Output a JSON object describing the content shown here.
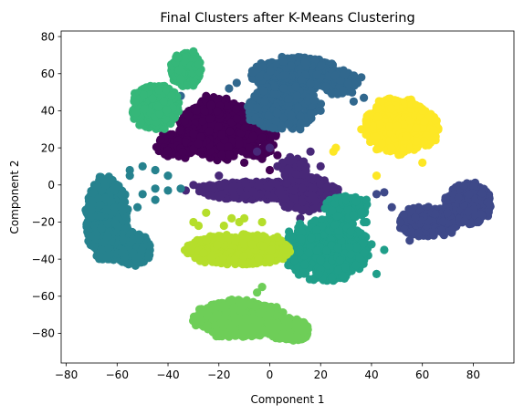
{
  "chart_data": {
    "type": "scatter",
    "title": "Final Clusters after K-Means Clustering",
    "xlabel": "Component 1",
    "ylabel": "Component 2",
    "xlim": [
      -82,
      96
    ],
    "ylim": [
      -96,
      83
    ],
    "xticks": [
      -80,
      -60,
      -40,
      -20,
      0,
      20,
      40,
      60,
      80
    ],
    "yticks": [
      -80,
      -60,
      -40,
      -20,
      0,
      20,
      40,
      60,
      80
    ],
    "grid": false,
    "legend": "none",
    "colormap": "viridis",
    "series": [
      {
        "color": "#440154",
        "clusters": [
          {
            "cx": -20,
            "cy": 30,
            "rx": 15,
            "ry": 16,
            "n": 650
          },
          {
            "cx": -35,
            "cy": 22,
            "rx": 10,
            "ry": 7,
            "n": 120
          },
          {
            "cx": -5,
            "cy": 25,
            "rx": 8,
            "ry": 10,
            "n": 120
          }
        ],
        "outliers": [
          [
            -8,
            20
          ],
          [
            -3,
            14
          ],
          [
            3,
            16
          ],
          [
            -10,
            12
          ],
          [
            0,
            8
          ],
          [
            -25,
            48
          ],
          [
            -12,
            22
          ]
        ]
      },
      {
        "color": "#482878",
        "clusters": [
          {
            "cx": -5,
            "cy": -3,
            "rx": 23,
            "ry": 5,
            "n": 380
          },
          {
            "cx": 15,
            "cy": -5,
            "rx": 12,
            "ry": 9,
            "n": 260
          },
          {
            "cx": 10,
            "cy": 8,
            "rx": 5,
            "ry": 6,
            "n": 60
          }
        ],
        "outliers": [
          [
            5,
            12
          ],
          [
            8,
            15
          ],
          [
            -5,
            18
          ],
          [
            0,
            20
          ],
          [
            -30,
            0
          ],
          [
            -33,
            -3
          ],
          [
            12,
            -18
          ],
          [
            3,
            10
          ],
          [
            20,
            10
          ],
          [
            16,
            18
          ],
          [
            -20,
            5
          ]
        ]
      },
      {
        "color": "#3e4989",
        "clusters": [
          {
            "cx": 62,
            "cy": -20,
            "rx": 12,
            "ry": 8,
            "n": 260
          },
          {
            "cx": 78,
            "cy": -10,
            "rx": 9,
            "ry": 11,
            "n": 260
          }
        ],
        "outliers": [
          [
            42,
            -5
          ],
          [
            45,
            -4
          ],
          [
            48,
            -12
          ],
          [
            55,
            -30
          ],
          [
            82,
            -20
          ]
        ]
      },
      {
        "color": "#31688e",
        "clusters": [
          {
            "cx": 10,
            "cy": 60,
            "rx": 17,
            "ry": 9,
            "n": 500
          },
          {
            "cx": 5,
            "cy": 42,
            "rx": 14,
            "ry": 12,
            "n": 350
          },
          {
            "cx": 28,
            "cy": 55,
            "rx": 6,
            "ry": 7,
            "n": 90
          }
        ],
        "outliers": [
          [
            33,
            45
          ],
          [
            37,
            47
          ],
          [
            -13,
            55
          ],
          [
            -16,
            52
          ],
          [
            20,
            40
          ],
          [
            12,
            30
          ],
          [
            -2,
            45
          ],
          [
            36,
            58
          ],
          [
            -35,
            48
          ]
        ]
      },
      {
        "color": "#26828e",
        "clusters": [
          {
            "cx": -64,
            "cy": -18,
            "rx": 8,
            "ry": 22,
            "n": 700
          },
          {
            "cx": -54,
            "cy": -35,
            "rx": 7,
            "ry": 9,
            "n": 150
          }
        ],
        "outliers": [
          [
            -55,
            8
          ],
          [
            -50,
            10
          ],
          [
            -45,
            8
          ],
          [
            -40,
            5
          ],
          [
            -45,
            -2
          ],
          [
            -40,
            -3
          ],
          [
            -35,
            -2
          ],
          [
            -50,
            -5
          ],
          [
            -45,
            -8
          ],
          [
            -52,
            -12
          ],
          [
            -55,
            5
          ]
        ]
      },
      {
        "color": "#1f9e89",
        "clusters": [
          {
            "cx": 22,
            "cy": -35,
            "rx": 17,
            "ry": 16,
            "n": 650
          },
          {
            "cx": 30,
            "cy": -12,
            "rx": 8,
            "ry": 6,
            "n": 150
          }
        ],
        "outliers": [
          [
            38,
            -20
          ],
          [
            40,
            -32
          ],
          [
            45,
            -35
          ],
          [
            42,
            -48
          ],
          [
            38,
            -8
          ],
          [
            37,
            -20
          ]
        ]
      },
      {
        "color": "#35b779",
        "clusters": [
          {
            "cx": -45,
            "cy": 42,
            "rx": 9,
            "ry": 12,
            "n": 450
          },
          {
            "cx": -33,
            "cy": 62,
            "rx": 6,
            "ry": 9,
            "n": 200
          }
        ],
        "outliers": [
          [
            -28,
            65
          ],
          [
            -30,
            72
          ]
        ]
      },
      {
        "color": "#6ece58",
        "clusters": [
          {
            "cx": -12,
            "cy": -72,
            "rx": 17,
            "ry": 10,
            "n": 600
          },
          {
            "cx": 8,
            "cy": -78,
            "rx": 8,
            "ry": 6,
            "n": 150
          }
        ],
        "outliers": [
          [
            -3,
            -55
          ],
          [
            -5,
            -58
          ]
        ]
      },
      {
        "color": "#b5de2b",
        "clusters": [
          {
            "cx": -12,
            "cy": -35,
            "rx": 20,
            "ry": 8,
            "n": 600
          }
        ],
        "outliers": [
          [
            -30,
            -20
          ],
          [
            -28,
            -22
          ],
          [
            -25,
            -15
          ],
          [
            -18,
            -22
          ],
          [
            -15,
            -18
          ],
          [
            -12,
            -20
          ],
          [
            -10,
            -18
          ],
          [
            3,
            -28
          ],
          [
            -3,
            -20
          ]
        ]
      },
      {
        "color": "#fde725",
        "clusters": [
          {
            "cx": 50,
            "cy": 32,
            "rx": 12,
            "ry": 15,
            "n": 600
          },
          {
            "cx": 58,
            "cy": 30,
            "rx": 8,
            "ry": 10,
            "n": 200
          }
        ],
        "outliers": [
          [
            36,
            30
          ],
          [
            38,
            33
          ],
          [
            42,
            5
          ],
          [
            60,
            12
          ],
          [
            26,
            20
          ],
          [
            25,
            18
          ],
          [
            65,
            35
          ]
        ]
      }
    ]
  }
}
